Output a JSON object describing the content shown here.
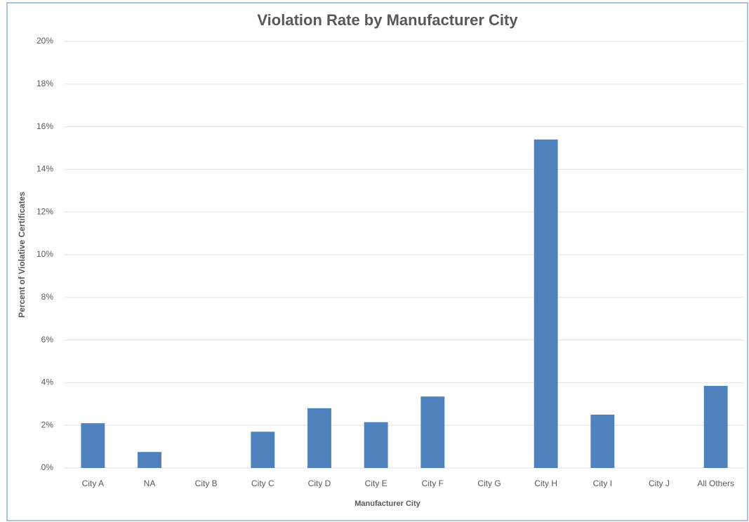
{
  "chart_data": {
    "type": "bar",
    "title": "Violation Rate by Manufacturer City",
    "x_label": "Manufacturer City",
    "y_label": "Percent of Violative Certificates",
    "categories": [
      "City A",
      "NA",
      "City B",
      "City C",
      "City D",
      "City E",
      "City F",
      "City G",
      "City H",
      "City I",
      "City J",
      "All Others"
    ],
    "values": [
      2.1,
      0.75,
      0,
      1.7,
      2.8,
      2.15,
      3.35,
      0,
      15.4,
      2.5,
      0,
      3.85
    ],
    "color": "#4f81bd",
    "ylim": [
      0,
      20
    ],
    "yticks": [
      {
        "value": 0,
        "label": "0%"
      },
      {
        "value": 2,
        "label": "2%"
      },
      {
        "value": 4,
        "label": "4%"
      },
      {
        "value": 6,
        "label": "6%"
      },
      {
        "value": 8,
        "label": "8%"
      },
      {
        "value": 10,
        "label": "10%"
      },
      {
        "value": 12,
        "label": "12%"
      },
      {
        "value": 14,
        "label": "14%"
      },
      {
        "value": 16,
        "label": "16%"
      },
      {
        "value": 18,
        "label": "18%"
      },
      {
        "value": 20,
        "label": "20%"
      }
    ],
    "grid": true
  }
}
